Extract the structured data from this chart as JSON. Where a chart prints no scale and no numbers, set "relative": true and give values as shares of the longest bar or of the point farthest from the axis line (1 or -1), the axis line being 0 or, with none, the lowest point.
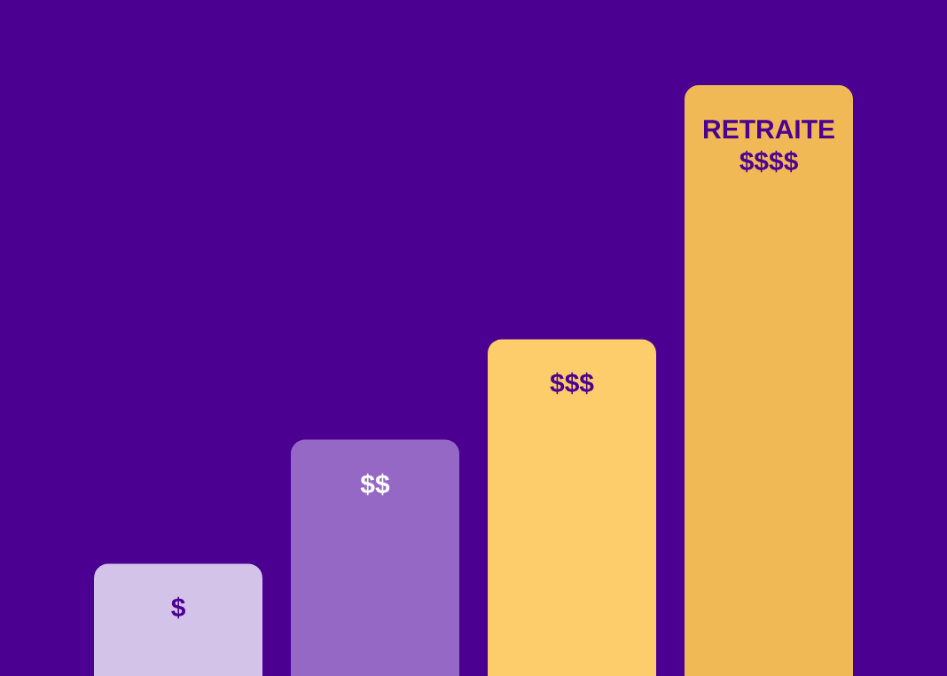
{
  "chart_data": {
    "type": "bar",
    "relative": true,
    "categories": [
      null,
      null,
      null,
      null
    ],
    "values": [
      0.19,
      0.4,
      0.57,
      1
    ],
    "colors": [
      "#d3c3e8",
      "#9468c4",
      "#fccd6a",
      "#f0b955"
    ],
    "annotations": [
      "$",
      "$$",
      "$$$",
      "RETRAITE\n$$$$"
    ]
  }
}
